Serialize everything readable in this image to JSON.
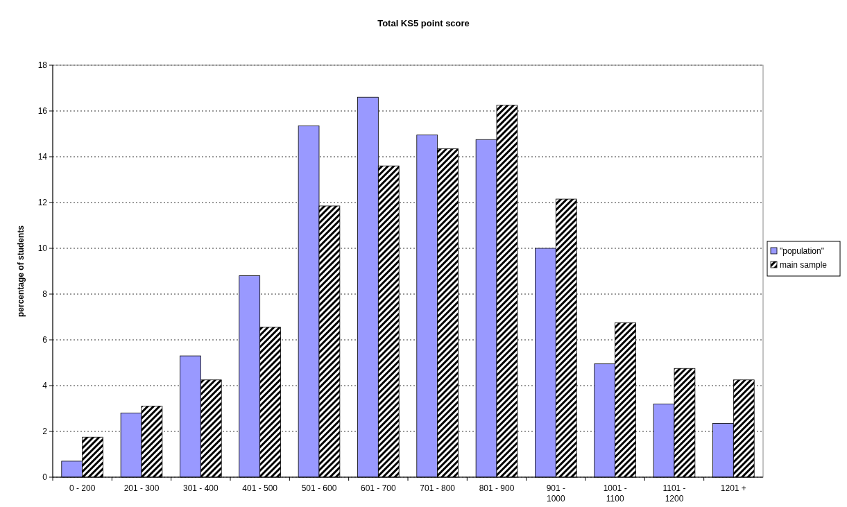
{
  "chart_data": {
    "type": "bar",
    "title": "Total KS5 point score",
    "ylabel": "percentage of students",
    "categories": [
      "0 - 200",
      "201 - 300",
      "301 - 400",
      "401 - 500",
      "501 - 600",
      "601 - 700",
      "701 - 800",
      "801 - 900",
      "901 - 1000",
      "1001 - 1100",
      "1101 - 1200",
      "1201 +"
    ],
    "series": [
      {
        "name": "\"population\"",
        "color": "#9999ff",
        "values": [
          0.7,
          2.8,
          5.3,
          8.8,
          15.35,
          16.6,
          14.95,
          14.75,
          10.0,
          4.95,
          3.2,
          2.35
        ]
      },
      {
        "name": "main sample",
        "color": "#000000",
        "values": [
          1.75,
          3.1,
          4.25,
          6.55,
          11.85,
          13.6,
          14.35,
          16.25,
          12.15,
          6.75,
          4.75,
          4.25
        ]
      }
    ],
    "ylim": [
      0,
      18
    ],
    "yticks": [
      0,
      2,
      4,
      6,
      8,
      10,
      12,
      14,
      16,
      18
    ],
    "grid": "y",
    "legend": "right"
  }
}
